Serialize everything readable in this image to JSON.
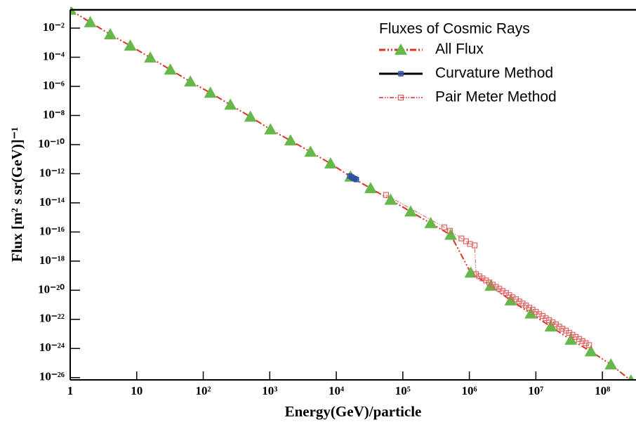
{
  "chart_data": {
    "type": "scatter",
    "log_x": true,
    "log_y": true,
    "x_label": "Energy(GeV)/particle",
    "y_label": "Flux [m² s sr(GeV)]⁻¹",
    "legend_title": "Fluxes of Cosmic Rays",
    "legend": "upper right",
    "xlim": [
      1,
      320000000
    ],
    "ylim": [
      7e-27,
      0.18
    ],
    "xticks": [
      1,
      10,
      {
        "value": 100,
        "label": "10²"
      },
      {
        "value": 1000,
        "label": "10³"
      },
      {
        "value": 10000,
        "label": "10⁴"
      },
      {
        "value": 100000,
        "label": "10⁵"
      },
      {
        "value": 1000000,
        "label": "10⁶"
      },
      {
        "value": 10000000,
        "label": "10⁷"
      },
      {
        "value": 100000000,
        "label": "10⁸"
      }
    ],
    "yticks": [
      {
        "value": 0.01,
        "label": "10⁻²"
      },
      {
        "value": 0.0001,
        "label": "10⁻⁴"
      },
      {
        "value": 1e-06,
        "label": "10⁻⁶"
      },
      {
        "value": 1e-08,
        "label": "10⁻⁸"
      },
      {
        "value": 1e-10,
        "label": "10⁻¹⁰"
      },
      {
        "value": 1e-12,
        "label": "10⁻¹²"
      },
      {
        "value": 1e-14,
        "label": "10⁻¹⁴"
      },
      {
        "value": 1e-16,
        "label": "10⁻¹⁶"
      },
      {
        "value": 1e-18,
        "label": "10⁻¹⁸"
      },
      {
        "value": 1e-20,
        "label": "10⁻²⁰"
      },
      {
        "value": 1e-22,
        "label": "10⁻²²"
      },
      {
        "value": 1e-24,
        "label": "10⁻²⁴"
      },
      {
        "value": 1e-26,
        "label": "10⁻²⁶"
      }
    ],
    "series": [
      {
        "name": "All Flux",
        "color": "#e03020",
        "marker": "triangle",
        "marker_color": "#66b84a",
        "line": "dashdotdot",
        "line_width": 2,
        "x": [
          1,
          2,
          4,
          8,
          16,
          32,
          64,
          128,
          256,
          512,
          1024,
          2048,
          4096,
          8192,
          16384,
          32768,
          65536,
          131072,
          262144,
          524288,
          1048576,
          2097152,
          4194304,
          8388608,
          16777216,
          33554432,
          67108864,
          134217728,
          268435456
        ],
        "values": [
          0.18,
          0.025,
          0.0037,
          0.00062,
          9.3e-05,
          1.4e-05,
          2.1e-06,
          3.6e-07,
          5.4e-08,
          8.1e-09,
          1.1e-09,
          1.9e-10,
          3.2e-11,
          5e-12,
          6.3e-13,
          1e-13,
          1.6e-14,
          2.5e-15,
          4e-16,
          6.3e-17,
          1.6e-19,
          2e-20,
          2e-21,
          2.5e-22,
          3.2e-23,
          4e-24,
          6.3e-25,
          7.9e-26,
          6.3e-27
        ]
      },
      {
        "name": "Curvature Method",
        "color": "#000000",
        "marker": "cross",
        "marker_color": "#3050a0",
        "line": "solid",
        "line_width": 2,
        "x": [
          16000,
          17000,
          18000,
          19000,
          20000
        ],
        "values": [
          7e-13,
          6e-13,
          5e-13,
          4.5e-13,
          4e-13
        ]
      },
      {
        "name": "Pair Meter Method",
        "color": "#e06060",
        "marker": "square",
        "marker_color": "#e06060",
        "line": "dashdotdot",
        "line_width": 1,
        "x": [
          56000,
          420000,
          510000,
          760000,
          890000,
          1020000,
          1200000,
          1260000,
          1410000,
          1580000,
          1780000,
          2000000,
          2240000,
          2510000,
          2820000,
          3160000,
          3550000,
          3980000,
          4470000,
          5010000,
          5620000,
          6310000,
          7080000,
          7940000,
          8910000,
          10000000,
          11200000,
          12600000,
          14100000,
          15800000,
          17800000,
          20000000,
          22400000,
          25100000,
          28200000,
          31600000,
          35500000,
          39800000,
          44700000,
          50100000,
          56200000,
          63100000
        ],
        "values": [
          3.5e-14,
          2.1e-16,
          1.2e-16,
          3.6e-17,
          2.3e-17,
          1.5e-17,
          1.2e-17,
          1.26e-19,
          9.1e-20,
          6.5e-20,
          4.7e-20,
          3.4e-20,
          2.4e-20,
          1.7e-20,
          1.26e-20,
          8.9e-21,
          6.5e-21,
          4.6e-21,
          3.3e-21,
          2.4e-21,
          1.7e-21,
          1.23e-21,
          8.9e-22,
          6.3e-22,
          4.6e-22,
          3.3e-22,
          2.3e-22,
          1.7e-22,
          1.2e-22,
          8.7e-23,
          6.3e-23,
          4.5e-23,
          3.2e-23,
          2.3e-23,
          1.7e-23,
          1.2e-23,
          8.7e-24,
          6.2e-24,
          4.5e-24,
          3.2e-24,
          2.3e-24,
          1.7e-24
        ]
      }
    ]
  }
}
